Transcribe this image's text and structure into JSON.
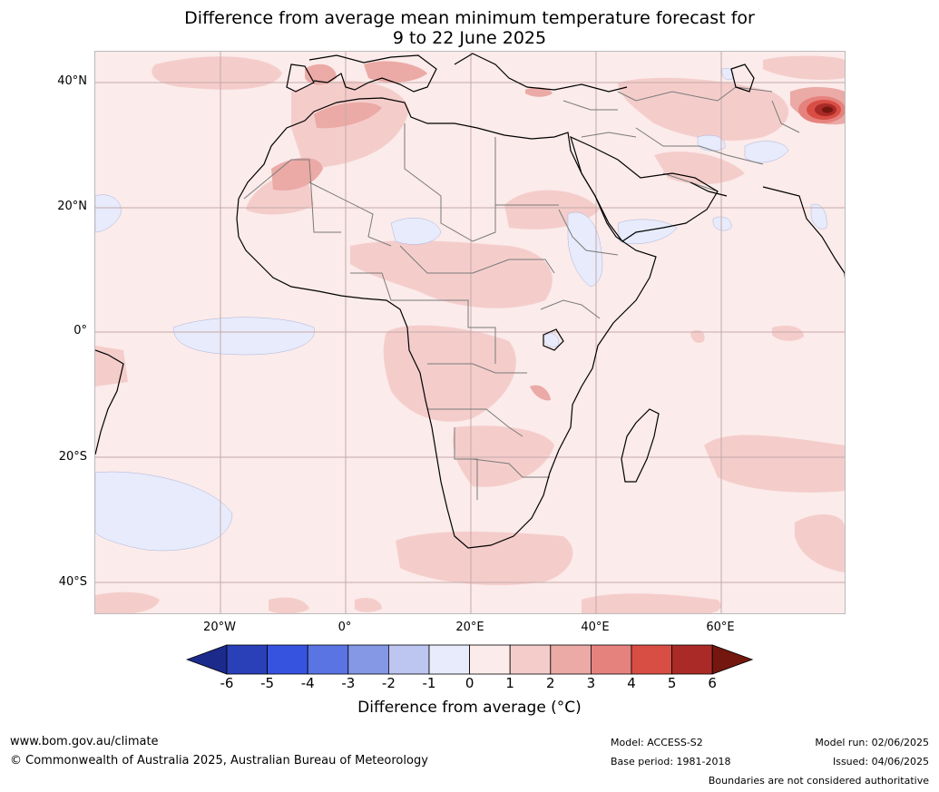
{
  "title": {
    "line1": "Difference from average mean minimum temperature forecast for",
    "line2": "9 to 22 June 2025"
  },
  "map": {
    "latitude_labels": [
      "40°N",
      "20°N",
      "0°",
      "20°S",
      "40°S"
    ],
    "longitude_labels": [
      "20°W",
      "0°",
      "20°E",
      "40°E",
      "60°E"
    ],
    "ocean_color": "#fbebea",
    "coast_color": "#000000",
    "border_color": "#7a7a7a",
    "grid_color": "#c4a9a9"
  },
  "colorbar": {
    "ticks": [
      "-6",
      "-5",
      "-4",
      "-3",
      "-2",
      "-1",
      "0",
      "1",
      "2",
      "3",
      "4",
      "5",
      "6"
    ],
    "colors": [
      "#1c2a8c",
      "#2a40b8",
      "#3653e0",
      "#5b74e3",
      "#8498e6",
      "#bcc6f0",
      "#e7ebfb",
      "#fbebea",
      "#f4cdcb",
      "#ebaaa6",
      "#e6827e",
      "#d94e44",
      "#a92a26",
      "#74170f"
    ],
    "label": "Difference from average (°C)"
  },
  "footer": {
    "url": "www.bom.gov.au/climate",
    "copyright": "© Commonwealth of Australia 2025, Australian Bureau of Meteorology",
    "model": "Model: ACCESS-S2",
    "base_period": "Base period: 1981-2018",
    "model_run": "Model run: 02/06/2025",
    "issued": "Issued: 04/06/2025",
    "disclaimer": "Boundaries are not considered authoritative"
  }
}
